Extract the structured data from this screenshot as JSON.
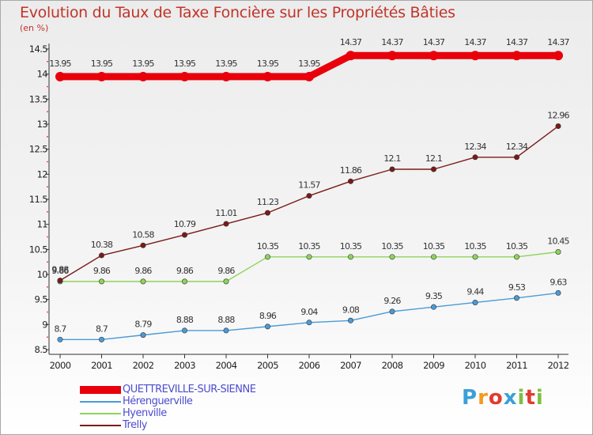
{
  "header": {
    "title": "Evolution du Taux de Taxe Foncière sur les Propriétés Bâties",
    "unit": "(en %)"
  },
  "brand": {
    "text": "Proxiti",
    "colors": [
      "#3aa0d8",
      "#f29b1d",
      "#e03c2e",
      "#3aa0d8",
      "#7cc142",
      "#e03c2e",
      "#7cc142"
    ]
  },
  "chart_data": {
    "type": "line",
    "x": [
      "2000",
      "2001",
      "2002",
      "2003",
      "2004",
      "2005",
      "2006",
      "2007",
      "2008",
      "2009",
      "2010",
      "2011",
      "2012"
    ],
    "ylim": [
      8.5,
      14.5
    ],
    "yticks": [
      "8.5",
      "9",
      "9.5",
      "10",
      "10.5",
      "11",
      "11.5",
      "12",
      "12.5",
      "13",
      "13.5",
      "14",
      "14.5"
    ],
    "grid": false,
    "legend": "bottom-left",
    "series": [
      {
        "name": "QUETTREVILLE-SUR-SIENNE",
        "color": "#e8000b",
        "values": [
          13.95,
          13.95,
          13.95,
          13.95,
          13.95,
          13.95,
          13.95,
          14.37,
          14.37,
          14.37,
          14.37,
          14.37,
          14.37
        ],
        "labels": [
          "13.95",
          "13.95",
          "13.95",
          "13.95",
          "13.95",
          "13.95",
          "13.95",
          "14.37",
          "14.37",
          "14.37",
          "14.37",
          "14.37",
          "14.37"
        ]
      },
      {
        "name": "Hérenguerville",
        "color": "#4a9bd6",
        "values": [
          8.7,
          8.7,
          8.79,
          8.88,
          8.88,
          8.96,
          9.04,
          9.08,
          9.26,
          9.35,
          9.44,
          9.53,
          9.63
        ],
        "labels": [
          "8.7",
          "8.7",
          "8.79",
          "8.88",
          "8.88",
          "8.96",
          "9.04",
          "9.08",
          "9.26",
          "9.35",
          "9.44",
          "9.53",
          "9.63"
        ]
      },
      {
        "name": "Hyenville",
        "color": "#8fd45a",
        "values": [
          9.86,
          9.86,
          9.86,
          9.86,
          9.86,
          10.35,
          10.35,
          10.35,
          10.35,
          10.35,
          10.35,
          10.35,
          10.45
        ],
        "labels": [
          "9.86",
          "9.86",
          "9.86",
          "9.86",
          "9.86",
          "10.35",
          "10.35",
          "10.35",
          "10.35",
          "10.35",
          "10.35",
          "10.35",
          "10.45"
        ]
      },
      {
        "name": "Trelly",
        "color": "#7b1a1a",
        "values": [
          9.88,
          10.38,
          10.58,
          10.79,
          11.01,
          11.23,
          11.57,
          11.86,
          12.1,
          12.1,
          12.34,
          12.34,
          12.96
        ],
        "labels": [
          "9.88",
          "10.38",
          "10.58",
          "10.79",
          "11.01",
          "11.23",
          "11.57",
          "11.86",
          "12.1",
          "12.1",
          "12.34",
          "12.34",
          "12.96"
        ]
      }
    ]
  }
}
